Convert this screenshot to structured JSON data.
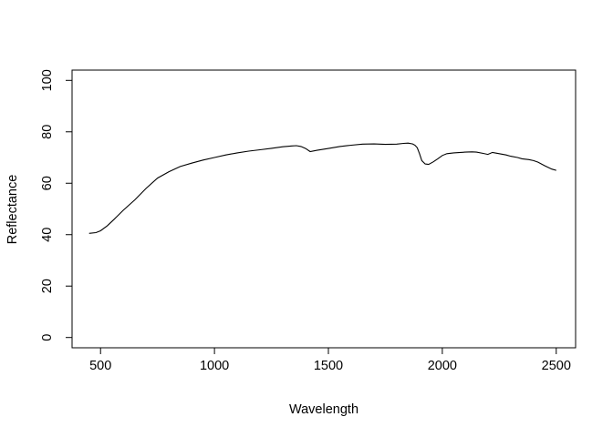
{
  "chart_data": {
    "type": "line",
    "title": "",
    "xlabel": "Wavelength",
    "ylabel": "Reflectance",
    "xlim": [
      375,
      2585
    ],
    "ylim": [
      -4,
      104
    ],
    "x_ticks": [
      500,
      1000,
      1500,
      2000,
      2500
    ],
    "y_ticks": [
      0,
      20,
      40,
      60,
      80,
      100
    ],
    "grid": false,
    "legend": "none",
    "line_color": "#000000",
    "series": [
      {
        "x": [
          450,
          480,
          500,
          530,
          560,
          600,
          650,
          700,
          750,
          800,
          850,
          900,
          950,
          1000,
          1050,
          1100,
          1150,
          1200,
          1250,
          1300,
          1340,
          1360,
          1380,
          1400,
          1420,
          1450,
          1500,
          1550,
          1600,
          1650,
          1700,
          1750,
          1800,
          1830,
          1850,
          1870,
          1880,
          1890,
          1900,
          1910,
          1925,
          1940,
          1960,
          1980,
          2000,
          2020,
          2050,
          2080,
          2100,
          2130,
          2150,
          2180,
          2200,
          2220,
          2250,
          2280,
          2300,
          2330,
          2350,
          2380,
          2400,
          2420,
          2450,
          2480,
          2500
        ],
        "y": [
          40.5,
          40.8,
          41.5,
          43.5,
          46,
          49.5,
          53.5,
          58,
          62,
          64.5,
          66.5,
          67.8,
          69,
          70,
          71,
          71.8,
          72.5,
          73,
          73.6,
          74.2,
          74.5,
          74.6,
          74.3,
          73.5,
          72.3,
          72.8,
          73.5,
          74.3,
          74.8,
          75.2,
          75.3,
          75.1,
          75.2,
          75.5,
          75.6,
          75.3,
          74.8,
          73.8,
          71.5,
          68.8,
          67.5,
          67.3,
          68.3,
          69.5,
          70.8,
          71.5,
          71.8,
          72,
          72.1,
          72.2,
          72.1,
          71.6,
          71.2,
          72,
          71.5,
          71,
          70.5,
          70,
          69.5,
          69.2,
          68.8,
          68.2,
          66.8,
          65.5,
          65
        ]
      }
    ]
  }
}
